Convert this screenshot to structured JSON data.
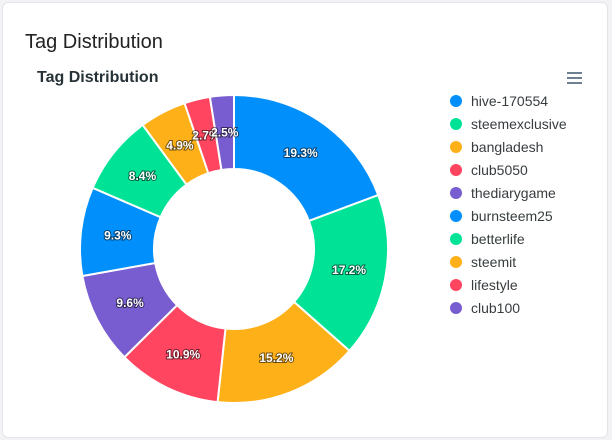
{
  "card": {
    "title": "Tag Distribution"
  },
  "chart_data": {
    "type": "pie",
    "variant": "donut",
    "title": "Tag Distribution",
    "categories": [
      "hive-170554",
      "steemexclusive",
      "bangladesh",
      "club5050",
      "thediarygame",
      "burnsteem25",
      "betterlife",
      "steemit",
      "lifestyle",
      "club100"
    ],
    "values": [
      19.3,
      17.2,
      15.2,
      10.9,
      9.6,
      9.3,
      8.4,
      4.9,
      2.7,
      2.5
    ],
    "data_labels": [
      "19.3%",
      "17.2%",
      "15.2%",
      "10.9%",
      "9.6%",
      "9.3%",
      "8.4%",
      "4.9%",
      "2.7%",
      "2.5%"
    ],
    "colors": [
      "#008FFB",
      "#00E396",
      "#FEB019",
      "#FF4560",
      "#775DD0",
      "#008FFB",
      "#00E396",
      "#FEB019",
      "#FF4560",
      "#775DD0"
    ],
    "legend_position": "right"
  },
  "menu": {
    "icon": "hamburger-menu-icon"
  }
}
